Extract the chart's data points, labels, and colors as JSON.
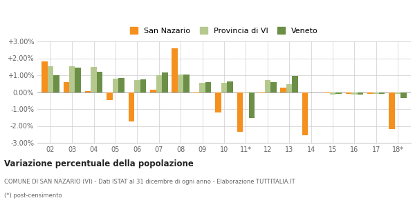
{
  "categories": [
    "02",
    "03",
    "04",
    "05",
    "06",
    "07",
    "08",
    "09",
    "10",
    "11*",
    "12",
    "13",
    "14",
    "15",
    "16",
    "17",
    "18*"
  ],
  "san_nazario": [
    0.018,
    0.006,
    0.0005,
    -0.0045,
    -0.0175,
    0.0015,
    0.026,
    -0.0005,
    -0.012,
    -0.0235,
    -0.0005,
    0.0028,
    -0.0255,
    -0.0008,
    -0.001,
    -0.001,
    -0.022
  ],
  "provincia_vi": [
    0.0155,
    0.0155,
    0.015,
    0.008,
    0.007,
    0.01,
    0.0105,
    0.0055,
    0.0055,
    -0.0005,
    0.007,
    0.0045,
    -0.0002,
    -0.0015,
    -0.0015,
    -0.001,
    -0.001
  ],
  "veneto": [
    0.01,
    0.0145,
    0.012,
    0.0085,
    0.0075,
    0.0118,
    0.0105,
    0.006,
    0.0062,
    -0.0155,
    0.0058,
    0.0095,
    -0.0002,
    -0.001,
    -0.0015,
    -0.0012,
    -0.0035
  ],
  "color_san_nazario": "#f5901e",
  "color_provincia_vi": "#b5c98e",
  "color_veneto": "#6b8f47",
  "title": "Variazione percentuale della popolazione",
  "subtitle": "COMUNE DI SAN NAZARIO (VI) - Dati ISTAT al 31 dicembre di ogni anno - Elaborazione TUTTITALIA.IT",
  "footnote": "(*) post-censimento",
  "ylim_min": -0.03,
  "ylim_max": 0.03,
  "yticks": [
    -0.03,
    -0.02,
    -0.01,
    0.0,
    0.01,
    0.02,
    0.03
  ],
  "ytick_labels": [
    "-3.00%",
    "-2.00%",
    "-1.00%",
    "0.00%",
    "+1.00%",
    "+2.00%",
    "+3.00%"
  ],
  "background_color": "#ffffff",
  "grid_color": "#cccccc"
}
